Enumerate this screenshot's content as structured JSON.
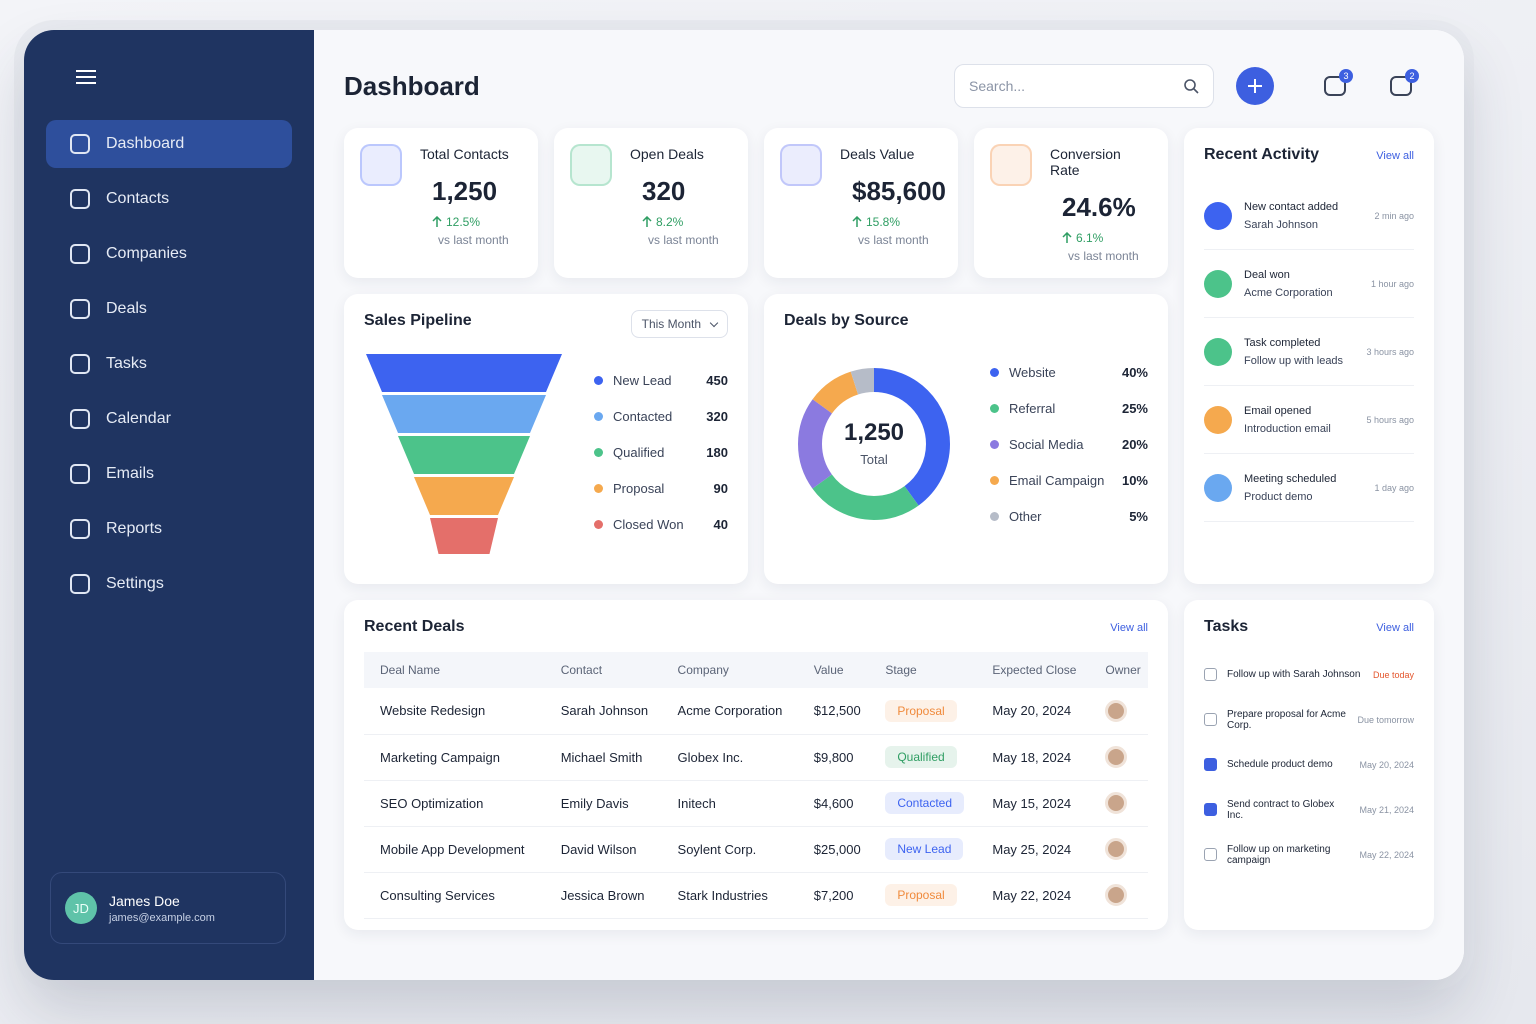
{
  "sidebar": {
    "nav": [
      "Dashboard",
      "Contacts",
      "Companies",
      "Deals",
      "Tasks",
      "Calendar",
      "Emails",
      "Reports",
      "Settings"
    ],
    "user": {
      "initials": "JD",
      "name": "James Doe",
      "email": "james@example.com"
    }
  },
  "header": {
    "title": "Dashboard",
    "search_placeholder": "Search...",
    "notifications": "3",
    "messages": "2"
  },
  "stats": [
    {
      "title": "Total Contacts",
      "value": "1,250",
      "change": "12.5%",
      "note": "vs last month",
      "color": "#4a6cf7"
    },
    {
      "title": "Open Deals",
      "value": "320",
      "change": "8.2%",
      "note": "vs last month",
      "color": "#3fb97d"
    },
    {
      "title": "Deals Value",
      "value": "$85,600",
      "change": "15.8%",
      "note": "vs last month",
      "color": "#5b6cf0"
    },
    {
      "title": "Conversion Rate",
      "value": "24.6%",
      "change": "6.1%",
      "note": "vs last month",
      "color": "#f08a3c"
    }
  ],
  "pipeline": {
    "title": "Sales Pipeline",
    "filter": "This Month",
    "stages": [
      {
        "name": "New Lead",
        "value": 450,
        "color": "#3d63f0"
      },
      {
        "name": "Contacted",
        "value": 320,
        "color": "#6aa8f0"
      },
      {
        "name": "Qualified",
        "value": 180,
        "color": "#4cc38a"
      },
      {
        "name": "Proposal",
        "value": 90,
        "color": "#f5a94e"
      },
      {
        "name": "Closed Won",
        "value": 40,
        "color": "#e46f6a"
      }
    ]
  },
  "sources": {
    "title": "Deals by Source",
    "total": "1,250",
    "total_label": "Total",
    "labels": [
      "Website",
      "Referral",
      "Social Media",
      "Email Campaign",
      "Other"
    ],
    "values": [
      40,
      25,
      20,
      10,
      5
    ],
    "value_labels": [
      "40%",
      "25%",
      "20%",
      "10%",
      "5%"
    ],
    "colors": [
      "#3d63f0",
      "#4cc38a",
      "#8b7ae0",
      "#f5a94e",
      "#b6bcc8"
    ]
  },
  "activity": {
    "title": "Recent Activity",
    "view_all": "View all",
    "items": [
      {
        "title": "New contact added",
        "detail": "Sarah Johnson",
        "time": "2 min ago",
        "color": "#3d63f0"
      },
      {
        "title": "Deal won",
        "detail": "Acme Corporation",
        "time": "1 hour ago",
        "color": "#4cc38a"
      },
      {
        "title": "Task completed",
        "detail": "Follow up with leads",
        "time": "3 hours ago",
        "color": "#4cc38a"
      },
      {
        "title": "Email opened",
        "detail": "Introduction email",
        "time": "5 hours ago",
        "color": "#f5a94e"
      },
      {
        "title": "Meeting scheduled",
        "detail": "Product demo",
        "time": "1 day ago",
        "color": "#6aa8f0"
      }
    ]
  },
  "deals": {
    "title": "Recent Deals",
    "view_all": "View all",
    "columns": [
      "Deal Name",
      "Contact",
      "Company",
      "Value",
      "Stage",
      "Expected Close",
      "Owner"
    ],
    "rows": [
      {
        "name": "Website Redesign",
        "contact": "Sarah Johnson",
        "company": "Acme Corporation",
        "value": "$12,500",
        "stage": "Proposal",
        "stage_color": "#f08a3c",
        "close": "May 20, 2024"
      },
      {
        "name": "Marketing Campaign",
        "contact": "Michael Smith",
        "company": "Globex Inc.",
        "value": "$9,800",
        "stage": "Qualified",
        "stage_color": "#2f9e63",
        "close": "May 18, 2024"
      },
      {
        "name": "SEO Optimization",
        "contact": "Emily Davis",
        "company": "Initech",
        "value": "$4,600",
        "stage": "Contacted",
        "stage_color": "#3d63f0",
        "close": "May 15, 2024"
      },
      {
        "name": "Mobile App Development",
        "contact": "David Wilson",
        "company": "Soylent Corp.",
        "value": "$25,000",
        "stage": "New Lead",
        "stage_color": "#3d63f0",
        "close": "May 25, 2024"
      },
      {
        "name": "Consulting Services",
        "contact": "Jessica Brown",
        "company": "Stark Industries",
        "value": "$7,200",
        "stage": "Proposal",
        "stage_color": "#f08a3c",
        "close": "May 22, 2024"
      }
    ]
  },
  "tasks": {
    "title": "Tasks",
    "view_all": "View all",
    "items": [
      {
        "text": "Follow up with Sarah Johnson",
        "due": "Due today",
        "done": false,
        "due_color": "#e4572e"
      },
      {
        "text": "Prepare proposal for Acme Corp.",
        "due": "Due tomorrow",
        "done": false,
        "due_color": "#8a93a3"
      },
      {
        "text": "Schedule product demo",
        "due": "May 20, 2024",
        "done": true,
        "due_color": "#8a93a3"
      },
      {
        "text": "Send contract to Globex Inc.",
        "due": "May 21, 2024",
        "done": true,
        "due_color": "#8a93a3"
      },
      {
        "text": "Follow up on marketing campaign",
        "due": "May 22, 2024",
        "done": false,
        "due_color": "#8a93a3"
      }
    ]
  }
}
